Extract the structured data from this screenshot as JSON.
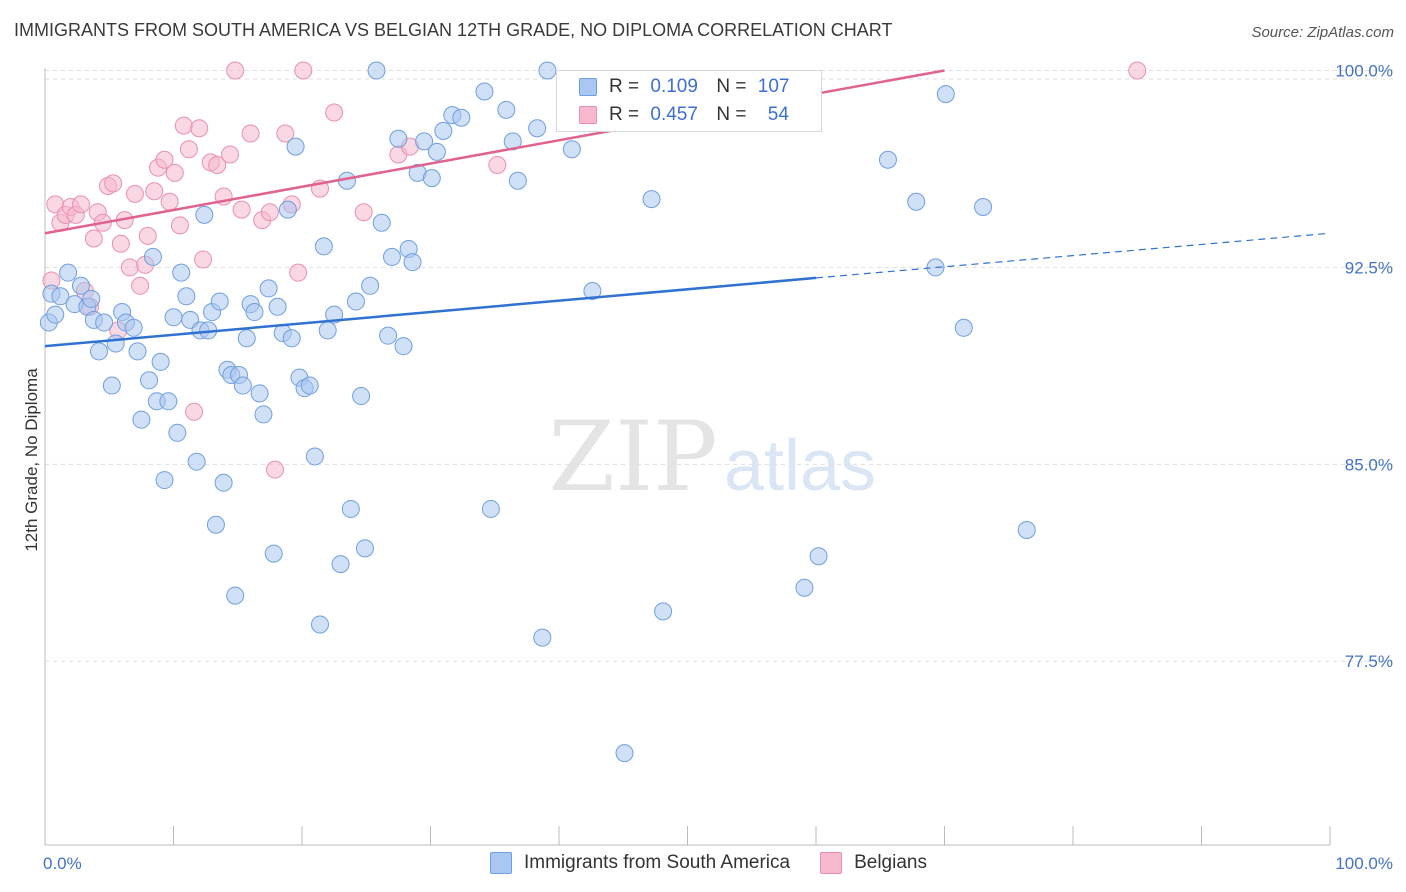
{
  "title": "IMMIGRANTS FROM SOUTH AMERICA VS BELGIAN 12TH GRADE, NO DIPLOMA CORRELATION CHART",
  "source": "Source: ZipAtlas.com",
  "watermark": {
    "zip": "ZIP",
    "atlas": "atlas"
  },
  "legend": {
    "rows": [
      {
        "r_label": "R =",
        "r_value": "0.109",
        "n_label": "N =",
        "n_value": "107"
      },
      {
        "r_label": "R =",
        "r_value": "0.457",
        "n_label": "N =",
        "n_value": "54"
      }
    ]
  },
  "colors": {
    "blue_fill": "#a9c7f0",
    "blue_stroke": "#6f9fe0",
    "blue_line": "#2f72d1",
    "pink_fill": "#f5b8cc",
    "pink_stroke": "#ea8fb0",
    "pink_line": "#e0628f",
    "grid": "#dedede",
    "tick_text": "#4472c4"
  },
  "chart_data": {
    "type": "scatter",
    "xlabel": "",
    "ylabel": "12th Grade, No Diploma",
    "xlim": [
      0,
      100
    ],
    "ylim": [
      70.5,
      100.4
    ],
    "x_tick_labels": [
      "0.0%",
      "100.0%"
    ],
    "y_ticks": [
      77.5,
      85.0,
      92.5,
      100.0
    ],
    "y_tick_labels": [
      "77.5%",
      "85.0%",
      "92.5%",
      "100.0%"
    ],
    "grid": true,
    "legend_position": "bottom-center",
    "series": [
      {
        "name": "Immigrants from South America",
        "r": 0.109,
        "n": 107,
        "trend": {
          "x0": 0,
          "y0": 89.5,
          "x1": 60,
          "y1": 92.1,
          "dashed_to_x": 100,
          "dashed_to_y": 93.8
        },
        "points": [
          [
            0.3,
            90.4
          ],
          [
            0.5,
            91.5
          ],
          [
            0.8,
            90.7
          ],
          [
            1.2,
            91.4
          ],
          [
            1.8,
            92.3
          ],
          [
            2.3,
            91.1
          ],
          [
            2.8,
            91.8
          ],
          [
            3.3,
            91.0
          ],
          [
            3.6,
            91.3
          ],
          [
            3.8,
            90.5
          ],
          [
            4.2,
            89.3
          ],
          [
            4.6,
            90.4
          ],
          [
            5.2,
            88.0
          ],
          [
            5.5,
            89.6
          ],
          [
            6.0,
            90.8
          ],
          [
            6.3,
            90.4
          ],
          [
            6.9,
            90.2
          ],
          [
            7.2,
            89.3
          ],
          [
            7.5,
            86.7
          ],
          [
            8.1,
            88.2
          ],
          [
            8.4,
            92.9
          ],
          [
            8.7,
            87.4
          ],
          [
            9.0,
            88.9
          ],
          [
            9.3,
            84.4
          ],
          [
            9.6,
            87.4
          ],
          [
            10.0,
            90.6
          ],
          [
            10.3,
            86.2
          ],
          [
            10.6,
            92.3
          ],
          [
            11.0,
            91.4
          ],
          [
            11.3,
            90.5
          ],
          [
            11.8,
            85.1
          ],
          [
            12.1,
            90.1
          ],
          [
            12.4,
            94.5
          ],
          [
            12.7,
            90.1
          ],
          [
            13.0,
            90.8
          ],
          [
            13.3,
            82.7
          ],
          [
            13.6,
            91.2
          ],
          [
            13.9,
            84.3
          ],
          [
            14.2,
            88.6
          ],
          [
            14.5,
            88.4
          ],
          [
            14.8,
            80.0
          ],
          [
            15.1,
            88.4
          ],
          [
            15.4,
            88.0
          ],
          [
            15.7,
            89.8
          ],
          [
            16.0,
            91.1
          ],
          [
            16.3,
            90.8
          ],
          [
            16.7,
            87.7
          ],
          [
            17.0,
            86.9
          ],
          [
            17.4,
            91.7
          ],
          [
            17.8,
            81.6
          ],
          [
            18.1,
            91.0
          ],
          [
            18.5,
            90.0
          ],
          [
            18.9,
            94.7
          ],
          [
            19.2,
            89.8
          ],
          [
            19.5,
            97.1
          ],
          [
            19.8,
            88.3
          ],
          [
            20.2,
            87.9
          ],
          [
            20.6,
            88.0
          ],
          [
            21.0,
            85.3
          ],
          [
            21.4,
            78.9
          ],
          [
            21.7,
            93.3
          ],
          [
            22.0,
            90.1
          ],
          [
            22.5,
            90.7
          ],
          [
            23.0,
            81.2
          ],
          [
            23.5,
            95.8
          ],
          [
            23.8,
            83.3
          ],
          [
            24.2,
            91.2
          ],
          [
            24.6,
            87.6
          ],
          [
            24.9,
            81.8
          ],
          [
            25.3,
            91.8
          ],
          [
            25.8,
            100.0
          ],
          [
            26.2,
            94.2
          ],
          [
            26.7,
            89.9
          ],
          [
            27.0,
            92.9
          ],
          [
            27.5,
            97.4
          ],
          [
            27.9,
            89.5
          ],
          [
            28.3,
            93.2
          ],
          [
            28.6,
            92.7
          ],
          [
            29.0,
            96.1
          ],
          [
            29.5,
            97.3
          ],
          [
            30.1,
            95.9
          ],
          [
            30.5,
            96.9
          ],
          [
            31.0,
            97.7
          ],
          [
            31.7,
            98.3
          ],
          [
            32.4,
            98.2
          ],
          [
            34.2,
            99.2
          ],
          [
            34.7,
            83.3
          ],
          [
            35.9,
            98.5
          ],
          [
            36.4,
            97.3
          ],
          [
            36.8,
            95.8
          ],
          [
            38.3,
            97.8
          ],
          [
            38.7,
            78.4
          ],
          [
            39.1,
            100.0
          ],
          [
            41.0,
            97.0
          ],
          [
            42.6,
            91.6
          ],
          [
            45.1,
            74.0
          ],
          [
            47.2,
            95.1
          ],
          [
            48.1,
            79.4
          ],
          [
            59.1,
            80.3
          ],
          [
            60.2,
            81.5
          ],
          [
            65.6,
            96.6
          ],
          [
            67.8,
            95.0
          ],
          [
            69.3,
            92.5
          ],
          [
            70.1,
            99.1
          ],
          [
            71.5,
            90.2
          ],
          [
            73.0,
            94.8
          ],
          [
            76.4,
            82.5
          ]
        ]
      },
      {
        "name": "Belgians",
        "r": 0.457,
        "n": 54,
        "trend": {
          "x0": 0,
          "y0": 93.8,
          "x1": 70,
          "y1": 100.0
        },
        "points": [
          [
            0.5,
            92.0
          ],
          [
            0.8,
            94.9
          ],
          [
            1.2,
            94.2
          ],
          [
            1.6,
            94.5
          ],
          [
            2.0,
            94.8
          ],
          [
            2.4,
            94.5
          ],
          [
            2.8,
            94.9
          ],
          [
            3.1,
            91.6
          ],
          [
            3.5,
            91.0
          ],
          [
            3.8,
            93.6
          ],
          [
            4.1,
            94.6
          ],
          [
            4.5,
            94.2
          ],
          [
            4.9,
            95.6
          ],
          [
            5.3,
            95.7
          ],
          [
            5.7,
            90.1
          ],
          [
            5.9,
            93.4
          ],
          [
            6.2,
            94.3
          ],
          [
            6.6,
            92.5
          ],
          [
            7.0,
            95.3
          ],
          [
            7.4,
            91.8
          ],
          [
            7.8,
            92.6
          ],
          [
            8.0,
            93.7
          ],
          [
            8.5,
            95.4
          ],
          [
            8.8,
            96.3
          ],
          [
            9.3,
            96.6
          ],
          [
            9.7,
            95.0
          ],
          [
            10.1,
            96.1
          ],
          [
            10.5,
            94.1
          ],
          [
            10.8,
            97.9
          ],
          [
            11.2,
            97.0
          ],
          [
            11.6,
            87.0
          ],
          [
            12.0,
            97.8
          ],
          [
            12.3,
            92.8
          ],
          [
            12.9,
            96.5
          ],
          [
            13.4,
            96.4
          ],
          [
            13.9,
            95.2
          ],
          [
            14.4,
            96.8
          ],
          [
            14.8,
            100.0
          ],
          [
            15.3,
            94.7
          ],
          [
            16.0,
            97.6
          ],
          [
            16.9,
            94.3
          ],
          [
            17.5,
            94.6
          ],
          [
            17.9,
            84.8
          ],
          [
            18.7,
            97.6
          ],
          [
            19.2,
            94.9
          ],
          [
            19.7,
            92.3
          ],
          [
            20.1,
            100.0
          ],
          [
            21.4,
            95.5
          ],
          [
            22.5,
            98.4
          ],
          [
            24.8,
            94.6
          ],
          [
            27.5,
            96.8
          ],
          [
            28.4,
            97.1
          ],
          [
            35.2,
            96.4
          ],
          [
            85.0,
            100.0
          ]
        ]
      }
    ]
  }
}
